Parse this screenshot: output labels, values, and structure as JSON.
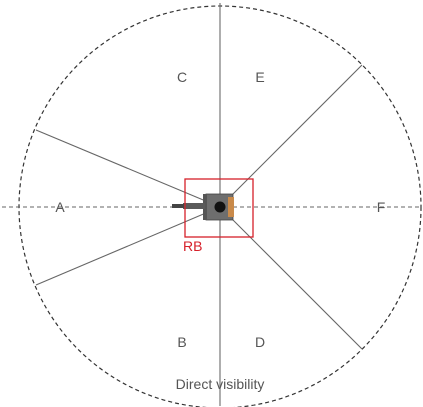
{
  "zones": [
    {
      "id": "A",
      "label": "A"
    },
    {
      "id": "B",
      "label": "B"
    },
    {
      "id": "C",
      "label": "C"
    },
    {
      "id": "D",
      "label": "D"
    },
    {
      "id": "E",
      "label": "E"
    },
    {
      "id": "F",
      "label": "F"
    }
  ],
  "rb_label": "RB",
  "caption": "Direct visibility",
  "colors": {
    "highlight": "#d6202a",
    "lines": "#666666",
    "boundary": "#333333",
    "text": "#555555",
    "machine_body": "#6e6e6e",
    "machine_accent": "#c98a4a"
  }
}
